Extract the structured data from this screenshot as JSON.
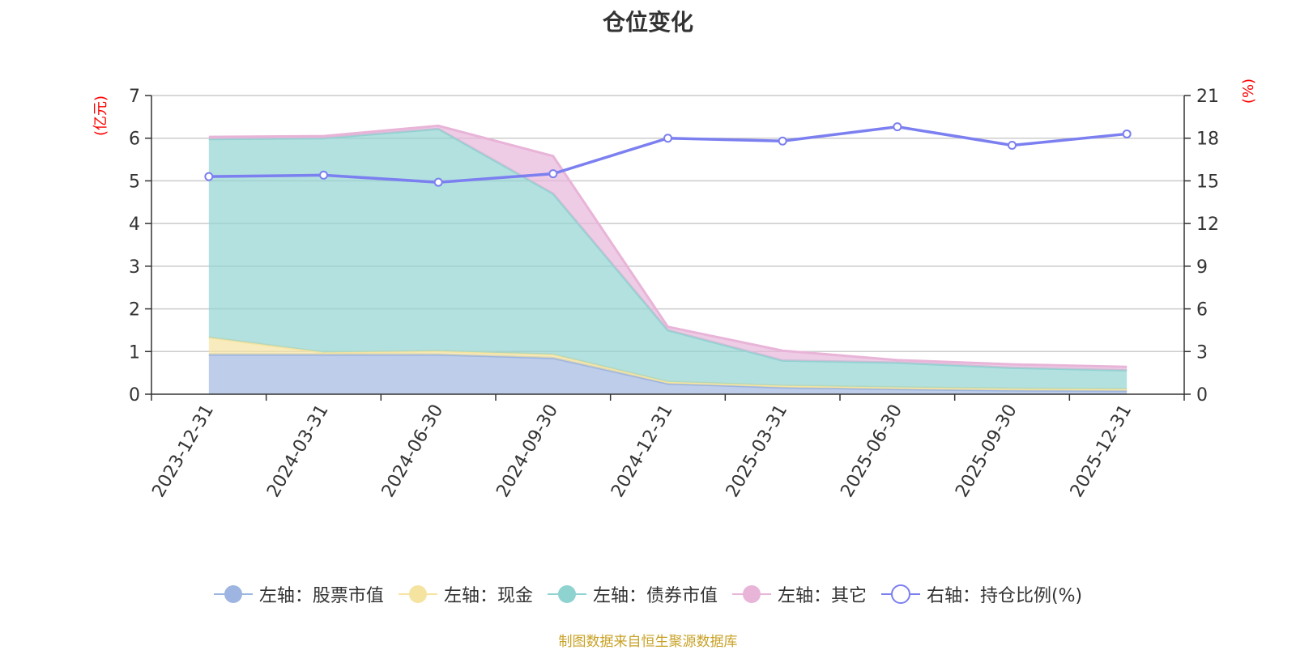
{
  "chart_data": {
    "type": "area",
    "title": "仓位变化",
    "left_axis_unit": "(亿元)",
    "right_axis_unit": "(%)",
    "categories": [
      "2023-12-31",
      "2024-03-31",
      "2024-06-30",
      "2024-09-30",
      "2024-12-31",
      "2025-03-31",
      "2025-06-30",
      "2025-09-30",
      "2025-12-31"
    ],
    "left_ylim": [
      0,
      7
    ],
    "left_ticks": [
      0,
      1,
      2,
      3,
      4,
      5,
      6,
      7
    ],
    "right_ylim": [
      0,
      21
    ],
    "right_ticks": [
      0,
      3,
      6,
      9,
      12,
      15,
      18,
      21
    ],
    "stacked": true,
    "series": [
      {
        "name": "左轴：股票市值",
        "axis": "left",
        "type": "area",
        "color": "#9db5e0",
        "values": [
          0.93,
          0.93,
          0.93,
          0.85,
          0.25,
          0.16,
          0.12,
          0.09,
          0.08
        ]
      },
      {
        "name": "左轴：现金",
        "axis": "left",
        "type": "area",
        "color": "#f5e3a0",
        "values": [
          0.4,
          0.05,
          0.08,
          0.08,
          0.04,
          0.04,
          0.04,
          0.04,
          0.04
        ]
      },
      {
        "name": "左轴：债券市值",
        "axis": "left",
        "type": "area",
        "color": "#8fd3d1",
        "values": [
          4.65,
          5.02,
          5.21,
          3.77,
          1.21,
          0.59,
          0.58,
          0.49,
          0.44
        ]
      },
      {
        "name": "左轴：其它",
        "axis": "left",
        "type": "area",
        "color": "#e8b4d8",
        "values": [
          0.05,
          0.05,
          0.07,
          0.88,
          0.08,
          0.23,
          0.06,
          0.08,
          0.08
        ]
      },
      {
        "name": "右轴：持仓比例(%)",
        "axis": "right",
        "type": "line",
        "color": "#7b7ff0",
        "values": [
          15.3,
          15.4,
          14.9,
          15.5,
          18.0,
          17.8,
          18.8,
          17.5,
          18.3
        ]
      }
    ],
    "source": "制图数据来自恒生聚源数据库"
  }
}
